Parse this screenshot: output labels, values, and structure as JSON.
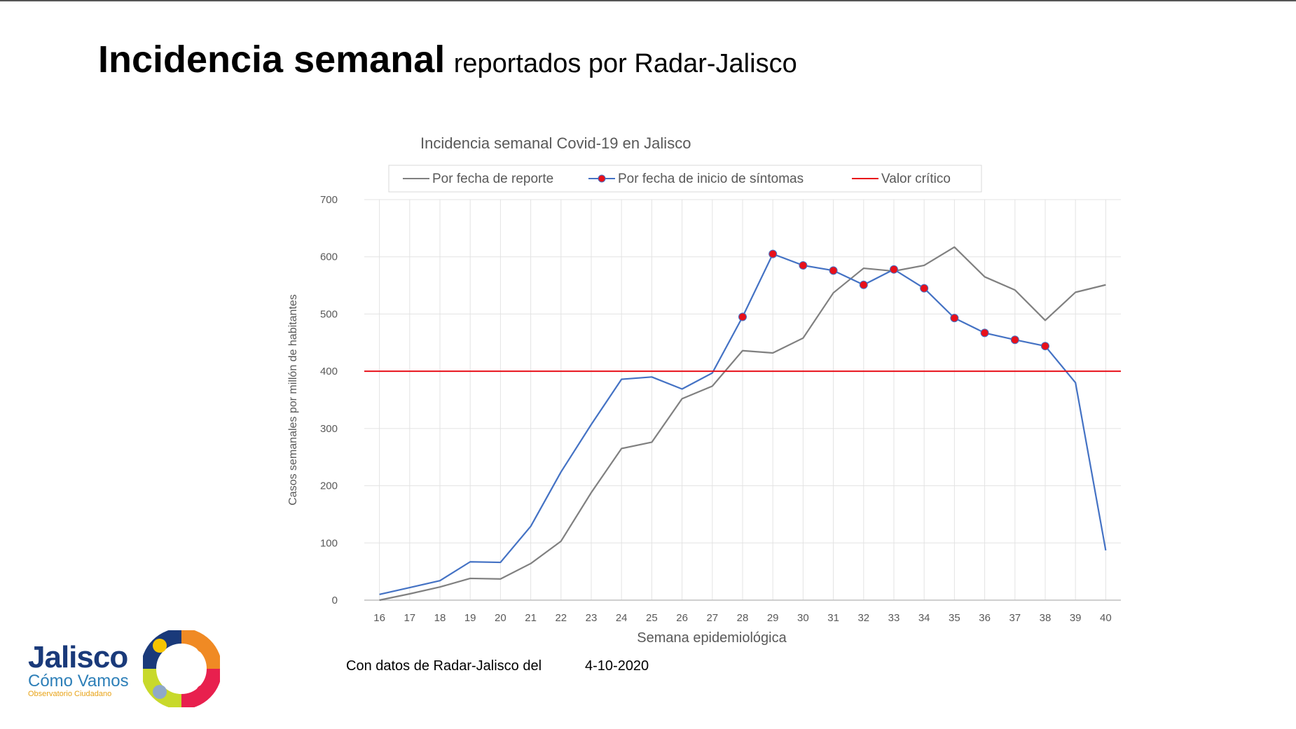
{
  "slide": {
    "title_bold": "Incidencia semanal",
    "title_rest": "reportados por Radar-Jalisco",
    "footer_label": "Con datos de Radar-Jalisco del",
    "footer_date": "4-10-2020"
  },
  "logo": {
    "name": "Jalisco",
    "subtitle": "Cómo Vamos",
    "tagline": "Observatorio Ciudadano",
    "colors": [
      "#f5c400",
      "#f08a24",
      "#e8204e",
      "#c8d92b",
      "#1a3a7a",
      "#8fa8c8"
    ]
  },
  "chart_data": {
    "type": "line",
    "title": "Incidencia semanal Covid-19 en Jalisco",
    "xlabel": "Semana epidemiológica",
    "ylabel": "Casos semanales por millón de habitantes",
    "ylim": [
      0,
      700
    ],
    "yticks": [
      0,
      100,
      200,
      300,
      400,
      500,
      600,
      700
    ],
    "categories": [
      "16",
      "17",
      "18",
      "19",
      "20",
      "21",
      "22",
      "23",
      "24",
      "25",
      "26",
      "27",
      "28",
      "29",
      "30",
      "31",
      "32",
      "33",
      "34",
      "35",
      "36",
      "37",
      "38",
      "39",
      "40"
    ],
    "legend_position": "top",
    "grid": true,
    "series": [
      {
        "name": "Por fecha de reporte",
        "color": "#808080",
        "markers": false,
        "values": [
          0,
          11,
          23,
          38,
          37,
          64,
          103,
          188,
          265,
          276,
          352,
          374,
          436,
          432,
          458,
          537,
          580,
          575,
          585,
          617,
          565,
          542,
          489,
          538,
          551
        ]
      },
      {
        "name": "Por fecha de inicio de síntomas",
        "color": "#4472c4",
        "marker_color": "#e8101a",
        "markers_from_index": 12,
        "markers_to_index": 22,
        "values": [
          10,
          22,
          34,
          67,
          66,
          129,
          224,
          307,
          386,
          390,
          369,
          397,
          495,
          605,
          585,
          576,
          551,
          578,
          545,
          493,
          467,
          455,
          444,
          380,
          87
        ]
      },
      {
        "name": "Valor crítico",
        "color": "#e8101a",
        "markers": false,
        "constant": 400
      }
    ]
  }
}
